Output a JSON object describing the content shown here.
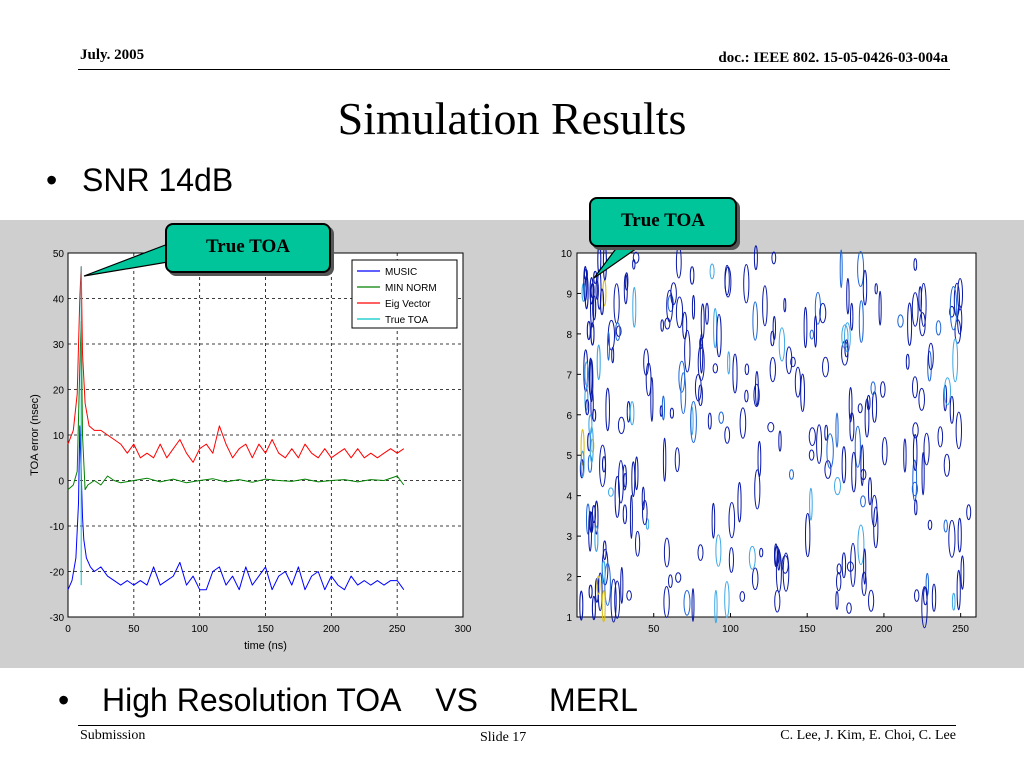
{
  "header": {
    "date": "July. 2005",
    "doc": "doc.: IEEE 802. 15-05-0426-03-004a"
  },
  "title": "Simulation Results",
  "bullets": {
    "snr": "SNR 14dB",
    "comparison": "High Resolution TOA    VS        MERL"
  },
  "callouts": {
    "left": "True TOA",
    "right": "True TOA"
  },
  "footer": {
    "left": "Submission",
    "center": "Slide 17",
    "right": "C. Lee, J. Kim, E. Choi, C. Lee"
  },
  "chart_data": [
    {
      "type": "line",
      "xlabel": "time (ns)",
      "ylabel": "TOA error (nsec)",
      "xlim": [
        0,
        300
      ],
      "ylim": [
        -30,
        50
      ],
      "xticks": [
        0,
        50,
        100,
        150,
        200,
        250,
        300
      ],
      "yticks": [
        -30,
        -20,
        -10,
        0,
        10,
        20,
        30,
        40,
        50
      ],
      "grid": true,
      "legend_position": "top-right",
      "series": [
        {
          "name": "MUSIC",
          "color": "#0000ff",
          "x": [
            0,
            3,
            6,
            8,
            9,
            10,
            11,
            12,
            14,
            17,
            20,
            25,
            30,
            35,
            40,
            45,
            50,
            55,
            60,
            65,
            70,
            75,
            80,
            85,
            90,
            95,
            100,
            105,
            110,
            115,
            120,
            125,
            130,
            135,
            140,
            145,
            150,
            155,
            160,
            165,
            170,
            175,
            180,
            185,
            190,
            195,
            200,
            205,
            210,
            215,
            220,
            225,
            230,
            235,
            240,
            245,
            250,
            255
          ],
          "y": [
            -24,
            -22,
            -17,
            -5,
            12,
            2,
            -8,
            -13,
            -17,
            -19,
            -20,
            -19,
            -21,
            -22,
            -23,
            -22,
            -23,
            -22,
            -23,
            -19,
            -23,
            -22,
            -21,
            -18,
            -23,
            -21,
            -24,
            -24,
            -20,
            -19,
            -23,
            -21,
            -24,
            -19,
            -23,
            -21,
            -19,
            -24,
            -21,
            -20,
            -23,
            -19,
            -24,
            -21,
            -20,
            -24,
            -21,
            -23,
            -24,
            -21,
            -23,
            -22,
            -23,
            -22,
            -23,
            -22,
            -22,
            -24
          ]
        },
        {
          "name": "MIN NORM",
          "color": "#008000",
          "x": [
            0,
            4,
            7,
            9,
            10,
            11,
            13,
            15,
            20,
            25,
            30,
            35,
            40,
            50,
            60,
            70,
            80,
            90,
            100,
            110,
            120,
            130,
            140,
            150,
            160,
            170,
            180,
            190,
            200,
            210,
            220,
            230,
            240,
            250,
            255
          ],
          "y": [
            -2,
            -1,
            2,
            25,
            35,
            10,
            -2,
            -1,
            0,
            -1,
            1,
            0,
            -0.5,
            0,
            0.5,
            -0.3,
            0.3,
            -0.5,
            0,
            0.4,
            -0.3,
            0.2,
            -0.4,
            0.3,
            0,
            -0.2,
            0.3,
            -0.3,
            0,
            0.2,
            -0.3,
            0.2,
            0,
            1,
            -1
          ]
        },
        {
          "name": "Eig Vector",
          "color": "#ff0000",
          "x": [
            0,
            4,
            7,
            9,
            10,
            11,
            13,
            16,
            20,
            25,
            30,
            35,
            40,
            45,
            50,
            55,
            60,
            65,
            70,
            75,
            80,
            85,
            90,
            95,
            100,
            105,
            110,
            115,
            120,
            125,
            130,
            135,
            140,
            145,
            150,
            155,
            160,
            165,
            170,
            175,
            180,
            185,
            190,
            195,
            200,
            205,
            210,
            215,
            220,
            225,
            230,
            235,
            240,
            245,
            250,
            255
          ],
          "y": [
            8,
            11,
            19,
            40,
            47,
            28,
            17,
            12,
            11,
            11,
            10,
            9,
            8,
            6,
            8,
            5,
            6,
            5,
            8,
            5,
            7,
            9,
            6,
            4,
            7,
            8,
            6,
            12,
            8,
            5,
            7,
            8,
            5,
            8,
            6,
            9,
            6,
            5,
            7,
            5,
            8,
            6,
            5,
            7,
            5,
            6,
            7,
            5,
            7,
            5,
            6,
            5,
            6,
            7,
            6,
            7
          ]
        },
        {
          "name": "True TOA",
          "color": "#00c8c8",
          "x": [
            10,
            10
          ],
          "y": [
            -23,
            47
          ]
        }
      ]
    },
    {
      "type": "heatmap",
      "xlim": [
        0,
        260
      ],
      "ylim": [
        1,
        10
      ],
      "xticks": [
        50,
        100,
        150,
        200,
        250
      ],
      "yticks": [
        1,
        2,
        3,
        4,
        5,
        6,
        7,
        8,
        9,
        10
      ],
      "grid": false
    }
  ]
}
